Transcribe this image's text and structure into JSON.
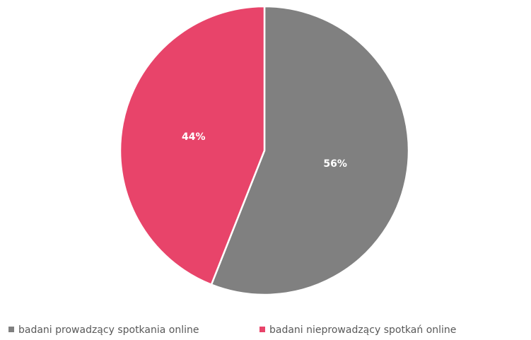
{
  "chart_data": {
    "type": "pie",
    "categories": [
      "badani prowadzący spotkania online",
      "badani nieprowadzący spotkań online"
    ],
    "values": [
      56,
      44
    ],
    "value_labels": [
      "56%",
      "44%"
    ],
    "colors": [
      "#808080",
      "#e8446a"
    ],
    "legend": "bottom"
  }
}
